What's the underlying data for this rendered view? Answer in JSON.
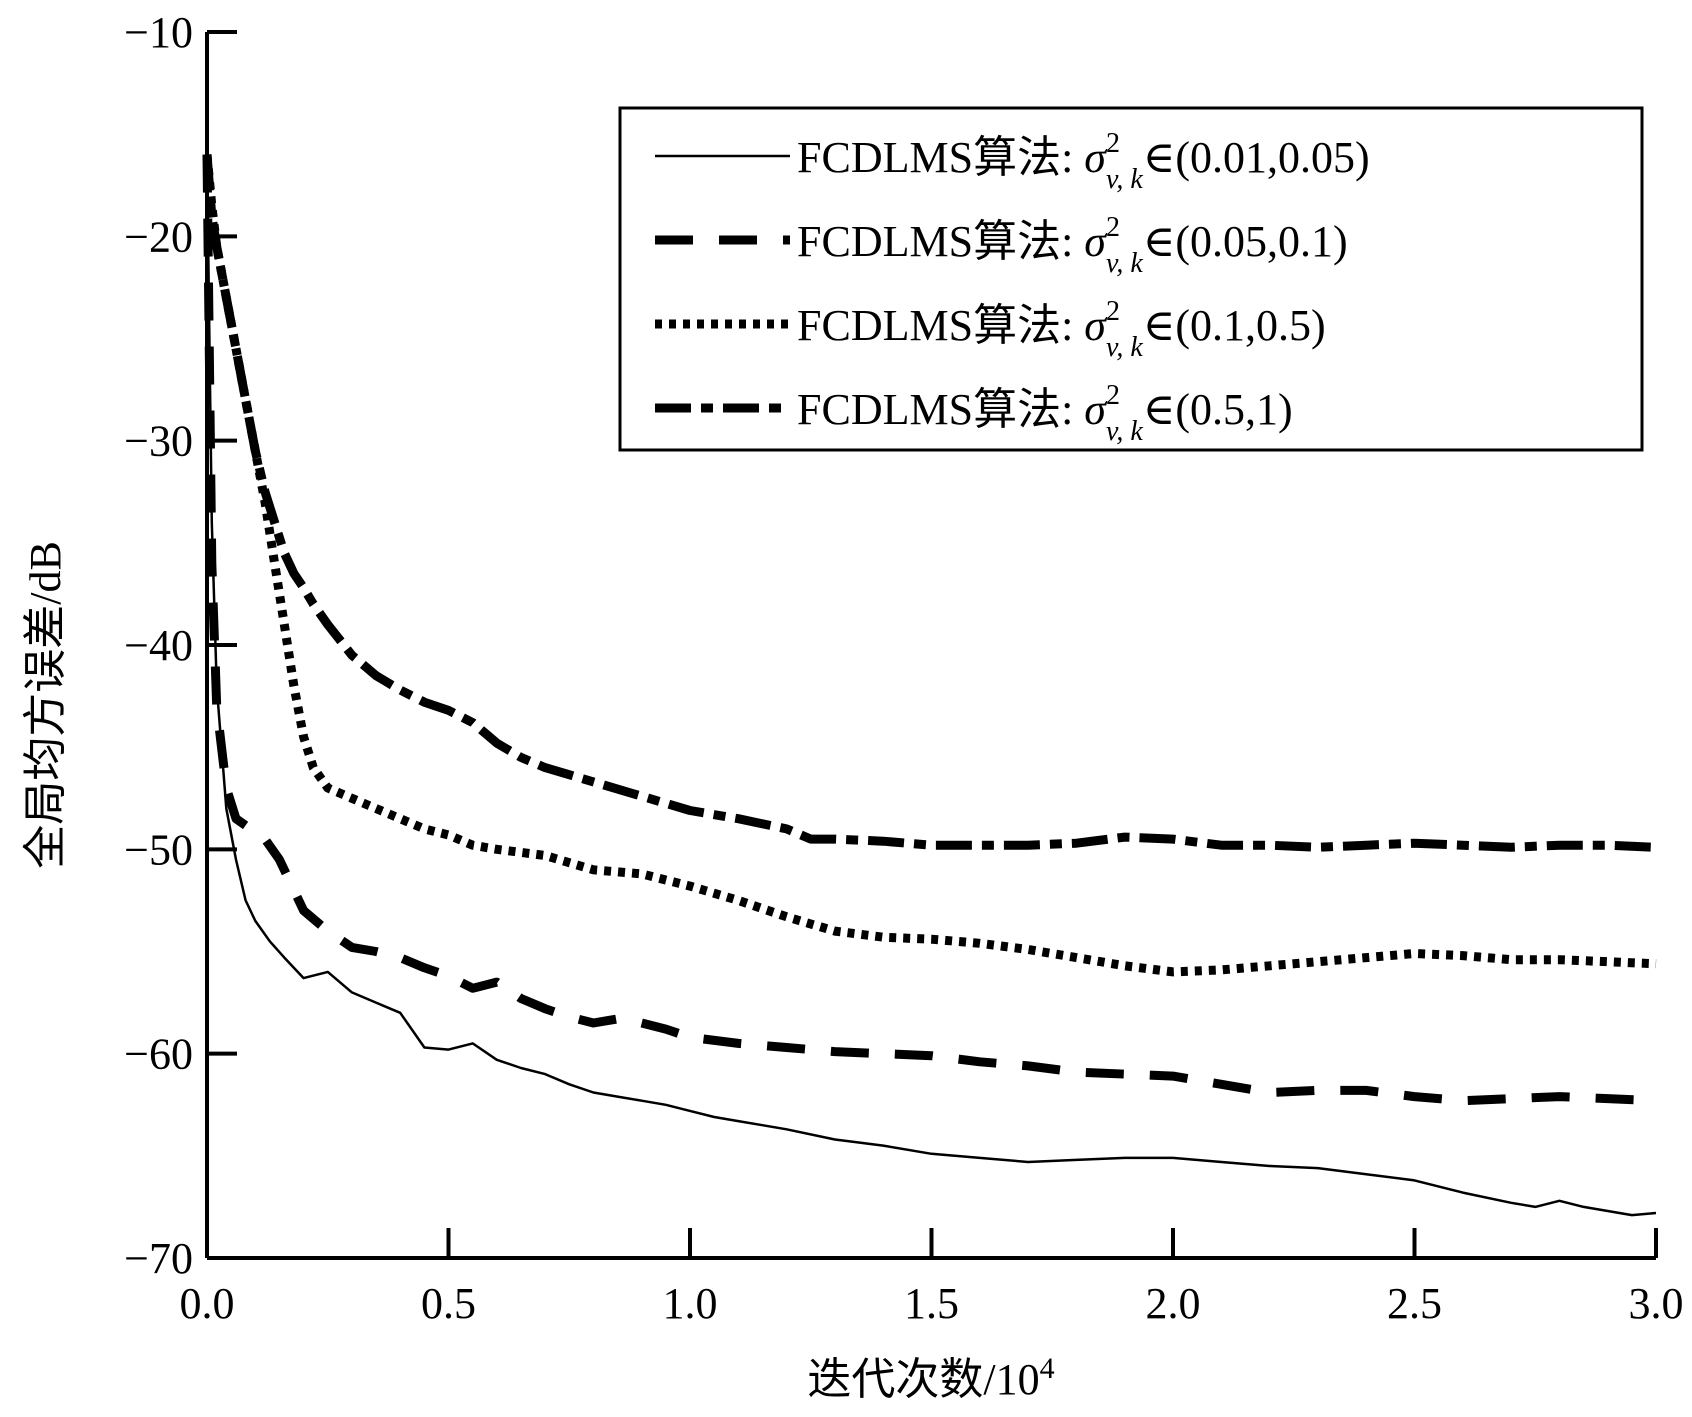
{
  "chart_data": {
    "type": "line",
    "title": "",
    "xlabel": "迭代次数/10",
    "xlabel_sup": "4",
    "ylabel": "全局均方误差/dB",
    "xlim": [
      0,
      3.0
    ],
    "ylim": [
      -70,
      -10
    ],
    "xticks": [
      0,
      0.5,
      1.0,
      1.5,
      2.0,
      2.5,
      3.0
    ],
    "xtick_labels": [
      "0.0",
      "0.5",
      "1.0",
      "1.5",
      "2.0",
      "2.5",
      "3.0"
    ],
    "yticks": [
      -10,
      -20,
      -30,
      -40,
      -50,
      -60,
      -70
    ],
    "ytick_labels": [
      "−10",
      "−20",
      "−30",
      "−40",
      "−50",
      "−60",
      "−70"
    ],
    "grid": false,
    "legend_position": "top-right",
    "series": [
      {
        "name_prefix": "FCDLMS算法: ",
        "name_range": "∈(0.01,0.05)",
        "style": "solid",
        "x": [
          0,
          0.005,
          0.01,
          0.02,
          0.04,
          0.06,
          0.08,
          0.1,
          0.13,
          0.16,
          0.2,
          0.25,
          0.3,
          0.35,
          0.4,
          0.45,
          0.5,
          0.55,
          0.6,
          0.65,
          0.7,
          0.75,
          0.8,
          0.85,
          0.9,
          0.95,
          1.0,
          1.05,
          1.1,
          1.15,
          1.2,
          1.3,
          1.4,
          1.5,
          1.6,
          1.7,
          1.8,
          1.9,
          2.0,
          2.1,
          2.2,
          2.3,
          2.4,
          2.5,
          2.6,
          2.7,
          2.75,
          2.8,
          2.85,
          2.9,
          2.95,
          3.0
        ],
        "values": [
          -16,
          -25,
          -34,
          -42,
          -48,
          -50.5,
          -52.5,
          -53.5,
          -54.5,
          -55.3,
          -56.3,
          -56,
          -57,
          -57.5,
          -58,
          -59.7,
          -59.8,
          -59.5,
          -60.3,
          -60.7,
          -61,
          -61.5,
          -61.9,
          -62.1,
          -62.3,
          -62.5,
          -62.8,
          -63.1,
          -63.3,
          -63.5,
          -63.7,
          -64.2,
          -64.5,
          -64.9,
          -65.1,
          -65.3,
          -65.2,
          -65.1,
          -65.1,
          -65.3,
          -65.5,
          -65.6,
          -65.9,
          -66.2,
          -66.8,
          -67.3,
          -67.5,
          -67.2,
          -67.5,
          -67.7,
          -67.9,
          -67.8
        ]
      },
      {
        "name_prefix": "FCDLMS算法: ",
        "name_range": "∈(0.05,0.1)",
        "style": "dashed",
        "x": [
          0,
          0.005,
          0.01,
          0.02,
          0.04,
          0.06,
          0.09,
          0.12,
          0.15,
          0.2,
          0.25,
          0.3,
          0.35,
          0.4,
          0.45,
          0.5,
          0.55,
          0.6,
          0.65,
          0.7,
          0.75,
          0.8,
          0.85,
          0.9,
          0.95,
          1.0,
          1.1,
          1.2,
          1.3,
          1.4,
          1.5,
          1.6,
          1.7,
          1.8,
          1.9,
          2.0,
          2.1,
          2.2,
          2.3,
          2.4,
          2.5,
          2.6,
          2.7,
          2.8,
          2.9,
          3.0
        ],
        "values": [
          -16,
          -26,
          -36,
          -43,
          -47,
          -48.5,
          -49,
          -49.5,
          -50.5,
          -53,
          -54,
          -54.8,
          -55,
          -55.3,
          -55.8,
          -56.2,
          -56.8,
          -56.5,
          -57.3,
          -57.8,
          -58.2,
          -58.5,
          -58.3,
          -58.5,
          -58.8,
          -59.2,
          -59.5,
          -59.7,
          -59.9,
          -60,
          -60.1,
          -60.4,
          -60.6,
          -60.9,
          -61,
          -61.1,
          -61.5,
          -61.9,
          -61.8,
          -61.8,
          -62.1,
          -62.3,
          -62.2,
          -62.1,
          -62.2,
          -62.3
        ]
      },
      {
        "name_prefix": "FCDLMS算法: ",
        "name_range": "∈(0.1,0.5)",
        "style": "dotted",
        "x": [
          0,
          0.01,
          0.02,
          0.04,
          0.06,
          0.08,
          0.1,
          0.12,
          0.14,
          0.16,
          0.18,
          0.2,
          0.22,
          0.25,
          0.3,
          0.35,
          0.4,
          0.45,
          0.5,
          0.55,
          0.6,
          0.7,
          0.8,
          0.9,
          1.0,
          1.1,
          1.2,
          1.3,
          1.4,
          1.5,
          1.6,
          1.7,
          1.8,
          1.9,
          2.0,
          2.1,
          2.2,
          2.3,
          2.4,
          2.5,
          2.6,
          2.7,
          2.8,
          2.9,
          3.0
        ],
        "values": [
          -16,
          -18.5,
          -20.5,
          -23,
          -25.5,
          -28,
          -30.5,
          -33,
          -36,
          -39,
          -42,
          -44.5,
          -46,
          -47,
          -47.5,
          -48,
          -48.5,
          -49,
          -49.3,
          -49.8,
          -50,
          -50.3,
          -51,
          -51.2,
          -51.8,
          -52.5,
          -53.3,
          -54,
          -54.3,
          -54.4,
          -54.6,
          -54.9,
          -55.3,
          -55.7,
          -56,
          -55.9,
          -55.7,
          -55.5,
          -55.3,
          -55.1,
          -55.2,
          -55.4,
          -55.4,
          -55.5,
          -55.6
        ]
      },
      {
        "name_prefix": "FCDLMS算法: ",
        "name_range": "∈(0.5,1)",
        "style": "dashdot",
        "x": [
          0,
          0.01,
          0.02,
          0.04,
          0.06,
          0.08,
          0.1,
          0.12,
          0.14,
          0.16,
          0.18,
          0.2,
          0.22,
          0.25,
          0.3,
          0.35,
          0.4,
          0.45,
          0.5,
          0.55,
          0.6,
          0.65,
          0.7,
          0.8,
          0.9,
          1.0,
          1.1,
          1.2,
          1.25,
          1.3,
          1.4,
          1.5,
          1.6,
          1.7,
          1.8,
          1.9,
          2.0,
          2.1,
          2.2,
          2.3,
          2.4,
          2.5,
          2.6,
          2.7,
          2.8,
          2.9,
          3.0
        ],
        "values": [
          -16,
          -19,
          -20.5,
          -23,
          -25.5,
          -28,
          -30.5,
          -32.5,
          -34,
          -35.5,
          -36.5,
          -37.2,
          -38,
          -39,
          -40.5,
          -41.5,
          -42.2,
          -42.8,
          -43.2,
          -43.8,
          -44.8,
          -45.5,
          -46,
          -46.7,
          -47.4,
          -48.1,
          -48.5,
          -49,
          -49.5,
          -49.5,
          -49.6,
          -49.8,
          -49.8,
          -49.8,
          -49.7,
          -49.4,
          -49.5,
          -49.8,
          -49.8,
          -49.9,
          -49.8,
          -49.7,
          -49.8,
          -49.9,
          -49.8,
          -49.8,
          -49.9
        ]
      }
    ]
  }
}
